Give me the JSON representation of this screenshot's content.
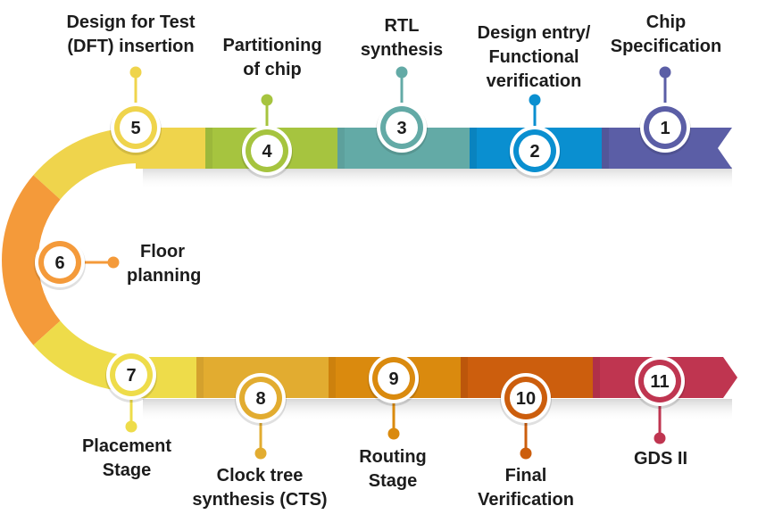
{
  "steps": [
    {
      "num": "1",
      "lines": [
        "Chip",
        "Specification"
      ],
      "color": "#5b5ea6"
    },
    {
      "num": "2",
      "lines": [
        "Design entry/",
        "Functional",
        "verification"
      ],
      "color": "#0a8fd0"
    },
    {
      "num": "3",
      "lines": [
        "RTL",
        "synthesis"
      ],
      "color": "#63aaa6"
    },
    {
      "num": "4",
      "lines": [
        "Partitioning",
        "of chip"
      ],
      "color": "#a6c43f"
    },
    {
      "num": "5",
      "lines": [
        "Design for Test",
        "(DFT) insertion"
      ],
      "color": "#efd44c"
    },
    {
      "num": "6",
      "lines": [
        "Floor",
        "planning"
      ],
      "color": "#f49a3a"
    },
    {
      "num": "7",
      "lines": [
        "Placement",
        "Stage"
      ],
      "color": "#eedc4a"
    },
    {
      "num": "8",
      "lines": [
        "Clock tree",
        "synthesis (CTS)"
      ],
      "color": "#e2ac30"
    },
    {
      "num": "9",
      "lines": [
        "Routing",
        "Stage"
      ],
      "color": "#da8a0e"
    },
    {
      "num": "10",
      "lines": [
        "Final",
        "Verification"
      ],
      "color": "#cc5e0d"
    },
    {
      "num": "11",
      "lines": [
        "GDS II"
      ],
      "color": "#bf3550"
    }
  ]
}
